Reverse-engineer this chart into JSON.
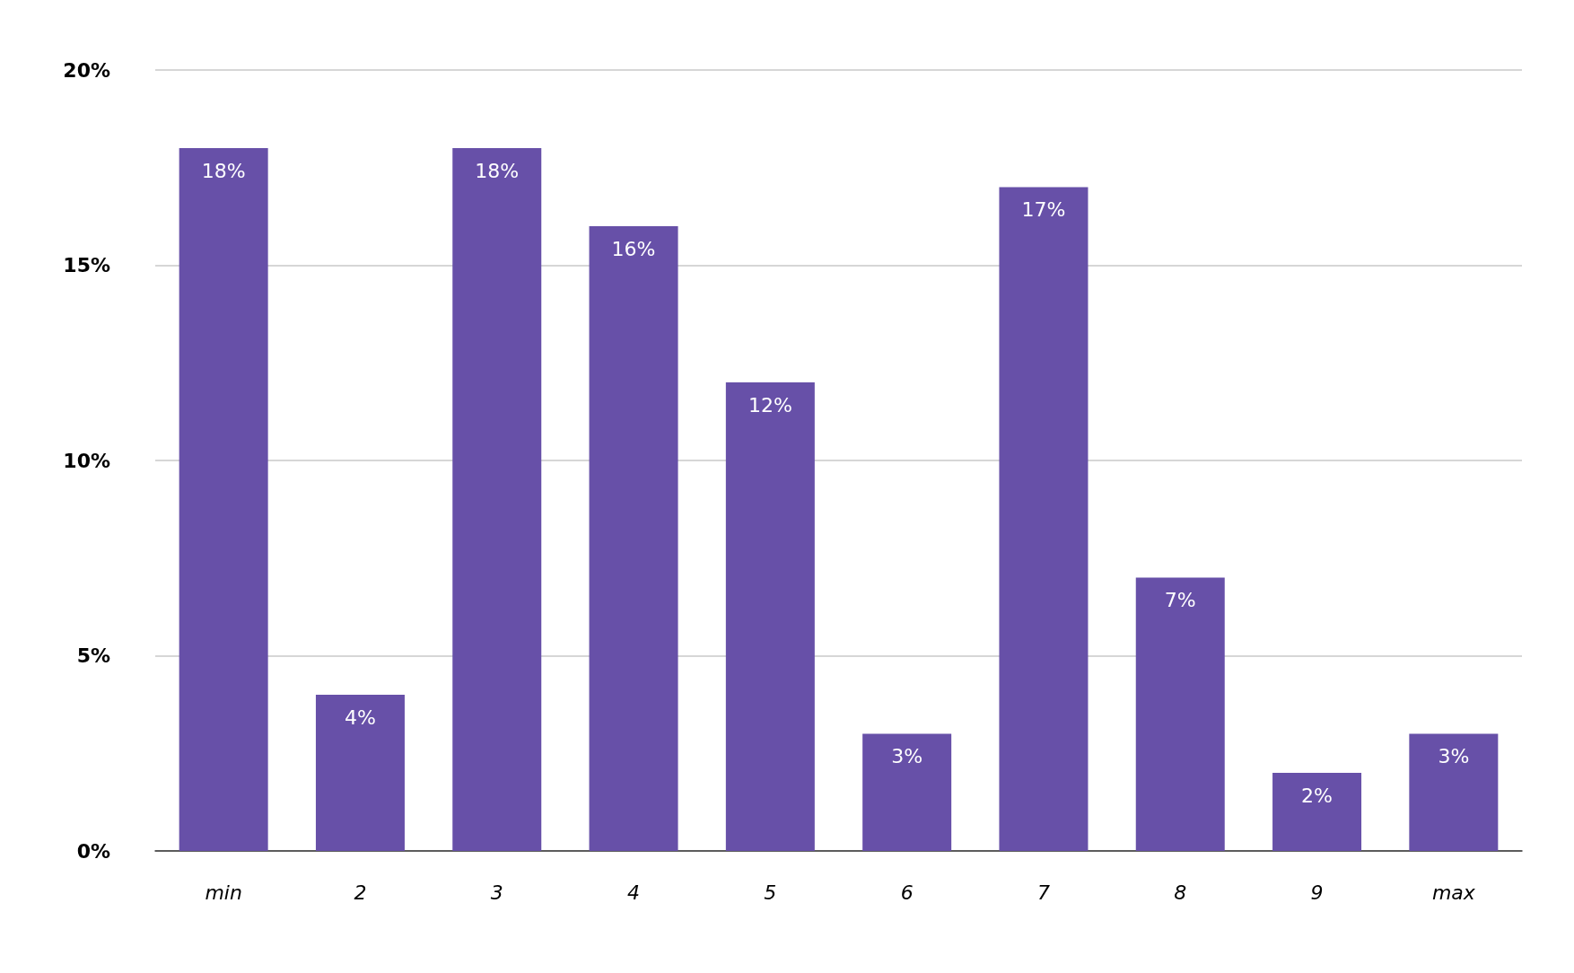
{
  "chart_data": {
    "type": "bar",
    "categories": [
      "min",
      "2",
      "3",
      "4",
      "5",
      "6",
      "7",
      "8",
      "9",
      "max"
    ],
    "values": [
      18,
      4,
      18,
      16,
      12,
      3,
      17,
      7,
      2,
      3
    ],
    "color": "#6750a8",
    "ylim": [
      0,
      20
    ],
    "yticks": [
      {
        "value": 0,
        "label": "0%"
      },
      {
        "value": 5,
        "label": "5%"
      },
      {
        "value": 10,
        "label": "10%"
      },
      {
        "value": 15,
        "label": "15%"
      },
      {
        "value": 20,
        "label": "20%"
      }
    ],
    "grid": "y",
    "value_labels": [
      "18%",
      "4%",
      "18%",
      "16%",
      "12%",
      "3%",
      "17%",
      "7%",
      "2%",
      "3%"
    ]
  }
}
